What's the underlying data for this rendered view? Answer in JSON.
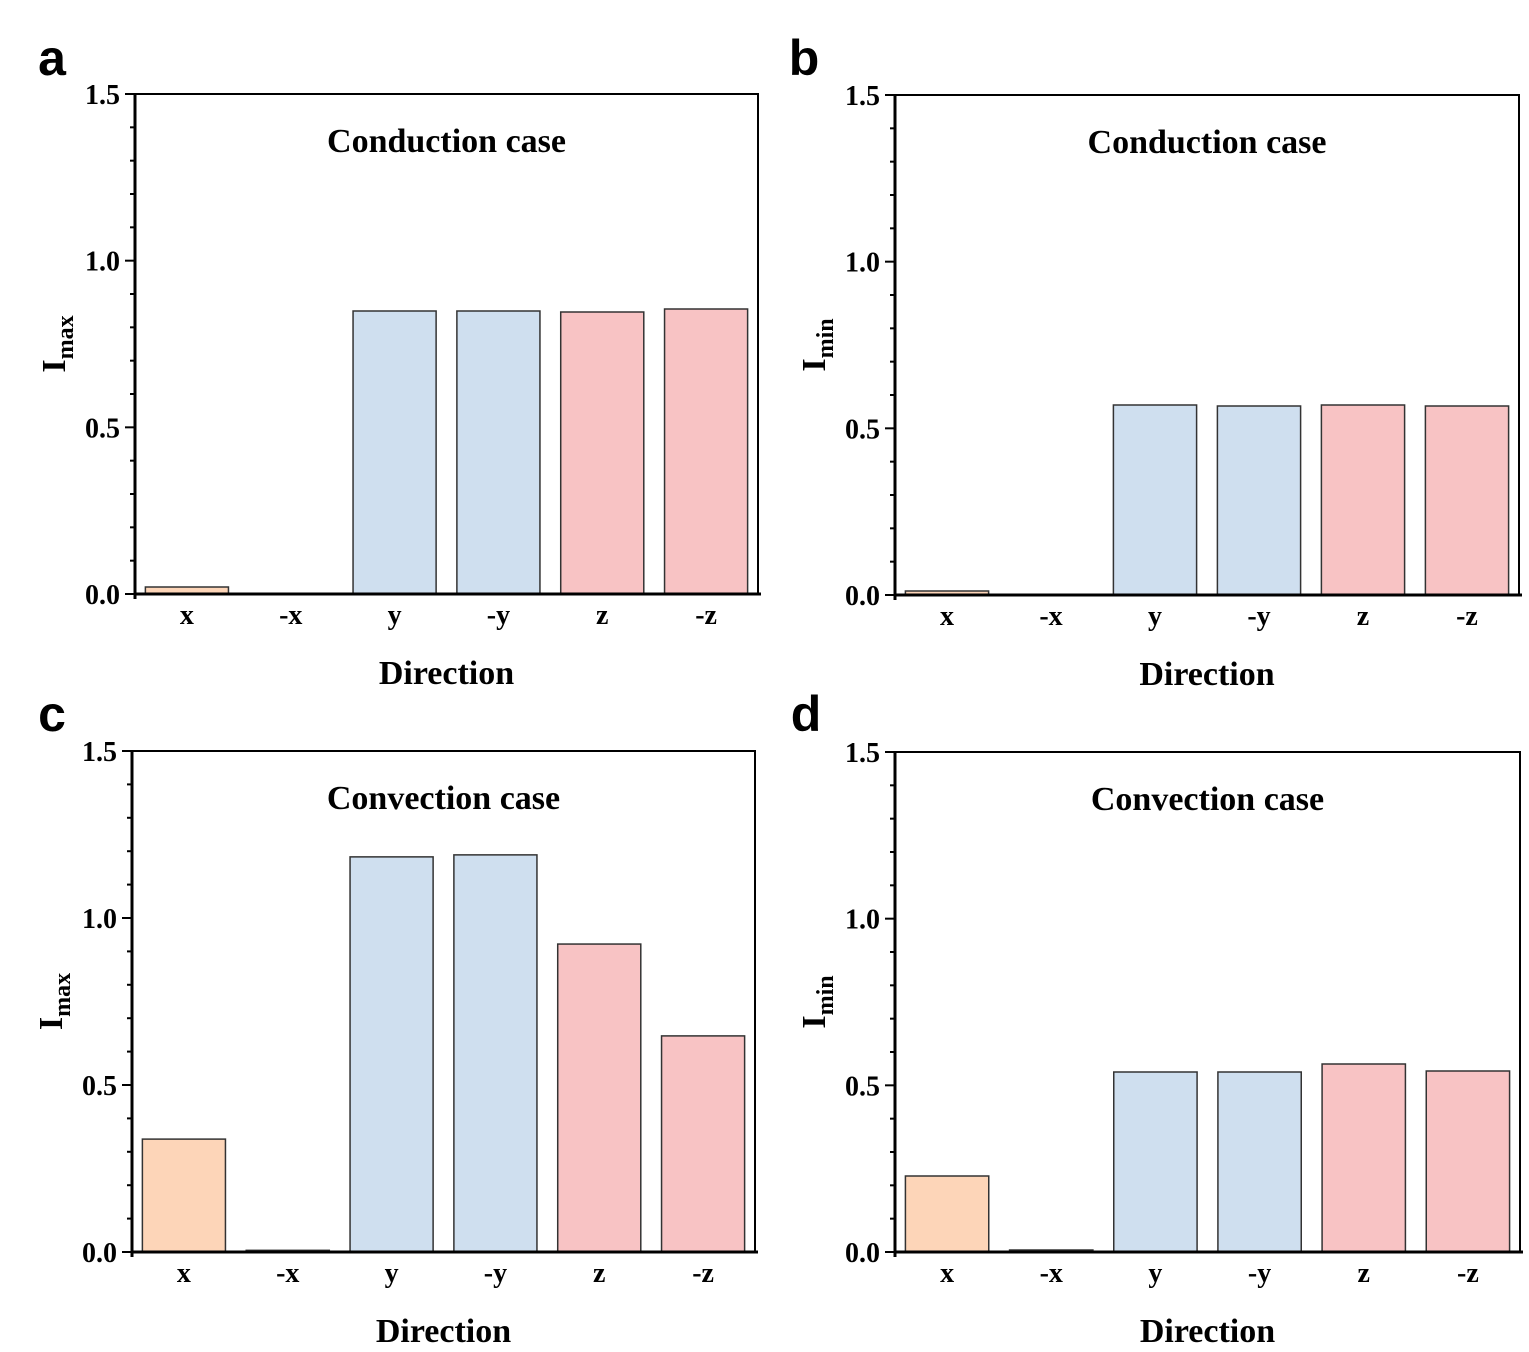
{
  "colors": {
    "x": "#FDD5B8",
    "y": "#CFDFEF",
    "z": "#F8C3C4",
    "edge": "#333333"
  },
  "chart_data": [
    {
      "panel": "a",
      "type": "bar",
      "title": "Conduction case",
      "xlabel": "Direction",
      "ylabel": "I",
      "ylabel_sub": "max",
      "categories": [
        "x",
        "-x",
        "y",
        "-y",
        "z",
        "-z"
      ],
      "values": [
        0.021,
        0.0,
        0.849,
        0.849,
        0.846,
        0.855
      ],
      "ylim": [
        0,
        1.5
      ],
      "yticks": [
        "0.0",
        "0.5",
        "1.0",
        "1.5"
      ],
      "grid": false
    },
    {
      "panel": "b",
      "type": "bar",
      "title": "Conduction case",
      "xlabel": "Direction",
      "ylabel": "I",
      "ylabel_sub": "min",
      "categories": [
        "x",
        "-x",
        "y",
        "-y",
        "z",
        "-z"
      ],
      "values": [
        0.012,
        0.0,
        0.57,
        0.567,
        0.57,
        0.567
      ],
      "ylim": [
        0,
        1.5
      ],
      "yticks": [
        "0.0",
        "0.5",
        "1.0",
        "1.5"
      ],
      "grid": false
    },
    {
      "panel": "c",
      "type": "bar",
      "title": "Convection case",
      "xlabel": "Direction",
      "ylabel": "I",
      "ylabel_sub": "max",
      "categories": [
        "x",
        "-x",
        "y",
        "-y",
        "z",
        "-z"
      ],
      "values": [
        0.338,
        0.005,
        1.183,
        1.189,
        0.922,
        0.647
      ],
      "ylim": [
        0,
        1.5
      ],
      "yticks": [
        "0.0",
        "0.5",
        "1.0",
        "1.5"
      ],
      "grid": false
    },
    {
      "panel": "d",
      "type": "bar",
      "title": "Convection case",
      "xlabel": "Direction",
      "ylabel": "I",
      "ylabel_sub": "min",
      "categories": [
        "x",
        "-x",
        "y",
        "-y",
        "z",
        "-z"
      ],
      "values": [
        0.228,
        0.006,
        0.54,
        0.54,
        0.564,
        0.543
      ],
      "ylim": [
        0,
        1.5
      ],
      "yticks": [
        "0.0",
        "0.5",
        "1.0",
        "1.5"
      ],
      "grid": false
    }
  ]
}
